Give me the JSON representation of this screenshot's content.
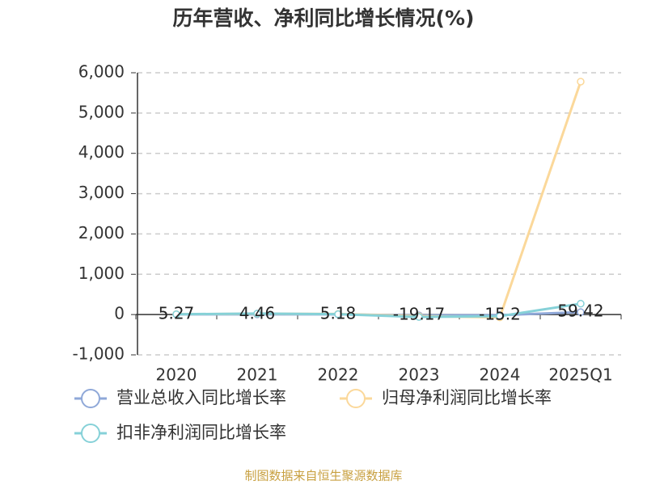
{
  "chart_data": {
    "type": "line",
    "title": "历年营收、净利同比增长情况(%)",
    "categories": [
      "2020",
      "2021",
      "2022",
      "2023",
      "2024",
      "2025Q1"
    ],
    "series": [
      {
        "name": "营业总收入同比增长率",
        "color": "#8fa8d8",
        "values": [
          5.27,
          4.46,
          5.18,
          -19.17,
          -15.2,
          59.42
        ]
      },
      {
        "name": "归母净利润同比增长率",
        "color": "#fbd89a",
        "values": [
          10,
          20,
          15,
          -40,
          -70,
          5780
        ]
      },
      {
        "name": "扣非净利润同比增长率",
        "color": "#86d1d8",
        "values": [
          8,
          25,
          10,
          -60,
          -40,
          270
        ]
      }
    ],
    "ylim": [
      -1000,
      6000
    ],
    "yticks": [
      {
        "value": 6000,
        "label": "6,000"
      },
      {
        "value": 5000,
        "label": "5,000"
      },
      {
        "value": 4000,
        "label": "4,000"
      },
      {
        "value": 3000,
        "label": "3,000"
      },
      {
        "value": 2000,
        "label": "2,000"
      },
      {
        "value": 1000,
        "label": "1,000"
      },
      0,
      {
        "value": -1000,
        "label": "-1,000"
      }
    ],
    "grid": true,
    "source": "制图数据来自恒生聚源数据库"
  }
}
